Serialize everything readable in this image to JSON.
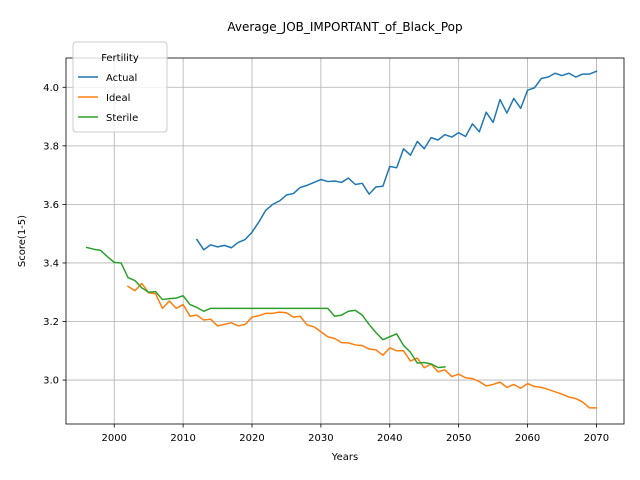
{
  "chart_data": {
    "type": "line",
    "title": "Average_JOB_IMPORTANT_of_Black_Pop",
    "xlabel": "Years",
    "ylabel": "Score(1-5)",
    "xlim": [
      1993,
      2074
    ],
    "ylim": [
      2.85,
      4.1
    ],
    "xticks": [
      2000,
      2010,
      2020,
      2030,
      2040,
      2050,
      2060,
      2070
    ],
    "yticks": [
      3.0,
      3.2,
      3.4,
      3.6,
      3.8,
      4.0
    ],
    "ytick_labels": [
      "3.0",
      "3.2",
      "3.4",
      "3.6",
      "3.8",
      "4.0"
    ],
    "grid": true,
    "legend": {
      "title": "Fertility",
      "placement": "top-left"
    },
    "series": [
      {
        "name": "Actual",
        "color": "#1f77b4",
        "x": [
          2012,
          2013,
          2014,
          2015,
          2016,
          2017,
          2018,
          2019,
          2020,
          2021,
          2022,
          2023,
          2024,
          2025,
          2026,
          2027,
          2028,
          2029,
          2030,
          2031,
          2032,
          2033,
          2034,
          2035,
          2036,
          2037,
          2038,
          2039,
          2040,
          2041,
          2042,
          2043,
          2044,
          2045,
          2046,
          2047,
          2048,
          2049,
          2050,
          2051,
          2052,
          2053,
          2054,
          2055,
          2056,
          2057,
          2058,
          2059,
          2060,
          2061,
          2062,
          2063,
          2064,
          2065,
          2066,
          2067,
          2068,
          2069,
          2070
        ],
        "values": [
          3.48,
          3.445,
          3.462,
          3.455,
          3.46,
          3.452,
          3.47,
          3.48,
          3.505,
          3.54,
          3.58,
          3.6,
          3.612,
          3.632,
          3.637,
          3.658,
          3.665,
          3.675,
          3.685,
          3.678,
          3.68,
          3.675,
          3.69,
          3.668,
          3.672,
          3.635,
          3.66,
          3.662,
          3.73,
          3.725,
          3.79,
          3.768,
          3.815,
          3.79,
          3.828,
          3.82,
          3.838,
          3.83,
          3.845,
          3.832,
          3.875,
          3.848,
          3.915,
          3.88,
          3.958,
          3.912,
          3.962,
          3.928,
          3.99,
          3.998,
          4.03,
          4.035,
          4.048,
          4.04,
          4.048,
          4.035,
          4.045,
          4.045,
          4.055
        ]
      },
      {
        "name": "Ideal",
        "color": "#ff7f0e",
        "x": [
          2002,
          2003,
          2004,
          2005,
          2006,
          2007,
          2008,
          2009,
          2010,
          2011,
          2012,
          2013,
          2014,
          2015,
          2016,
          2017,
          2018,
          2019,
          2020,
          2021,
          2022,
          2023,
          2024,
          2025,
          2026,
          2027,
          2028,
          2029,
          2030,
          2031,
          2032,
          2033,
          2034,
          2035,
          2036,
          2037,
          2038,
          2039,
          2040,
          2041,
          2042,
          2043,
          2044,
          2045,
          2046,
          2047,
          2048,
          2049,
          2050,
          2051,
          2052,
          2053,
          2054,
          2055,
          2056,
          2057,
          2058,
          2059,
          2060,
          2061,
          2062,
          2063,
          2064,
          2065,
          2066,
          2067,
          2068,
          2069,
          2070
        ],
        "values": [
          3.32,
          3.305,
          3.33,
          3.298,
          3.295,
          3.245,
          3.27,
          3.245,
          3.258,
          3.218,
          3.222,
          3.205,
          3.208,
          3.185,
          3.19,
          3.196,
          3.185,
          3.19,
          3.215,
          3.22,
          3.228,
          3.228,
          3.232,
          3.23,
          3.215,
          3.218,
          3.188,
          3.182,
          3.165,
          3.148,
          3.142,
          3.128,
          3.127,
          3.12,
          3.118,
          3.106,
          3.103,
          3.085,
          3.11,
          3.1,
          3.1,
          3.065,
          3.075,
          3.042,
          3.055,
          3.028,
          3.035,
          3.012,
          3.02,
          3.008,
          3.005,
          2.995,
          2.98,
          2.985,
          2.993,
          2.975,
          2.985,
          2.972,
          2.988,
          2.978,
          2.975,
          2.968,
          2.96,
          2.952,
          2.942,
          2.937,
          2.925,
          2.905,
          2.905
        ]
      },
      {
        "name": "Sterile",
        "color": "#2ca02c",
        "x": [
          1996,
          1997,
          1998,
          1999,
          2000,
          2001,
          2002,
          2003,
          2004,
          2005,
          2006,
          2007,
          2008,
          2009,
          2010,
          2011,
          2012,
          2013,
          2014,
          2015,
          2016,
          2017,
          2018,
          2019,
          2020,
          2021,
          2022,
          2023,
          2024,
          2025,
          2026,
          2027,
          2028,
          2029,
          2030,
          2031,
          2032,
          2033,
          2034,
          2035,
          2036,
          2037,
          2038,
          2039,
          2040,
          2041,
          2042,
          2043,
          2044,
          2045,
          2046,
          2047,
          2048
        ],
        "values": [
          3.453,
          3.447,
          3.443,
          3.422,
          3.402,
          3.4,
          3.35,
          3.34,
          3.315,
          3.3,
          3.302,
          3.275,
          3.278,
          3.28,
          3.288,
          3.258,
          3.248,
          3.235,
          3.245,
          3.245,
          3.245,
          3.245,
          3.245,
          3.245,
          3.245,
          3.245,
          3.245,
          3.245,
          3.245,
          3.245,
          3.245,
          3.245,
          3.245,
          3.245,
          3.245,
          3.245,
          3.218,
          3.222,
          3.235,
          3.238,
          3.222,
          3.19,
          3.162,
          3.138,
          3.148,
          3.158,
          3.118,
          3.095,
          3.058,
          3.06,
          3.055,
          3.043,
          3.045
        ]
      }
    ]
  }
}
